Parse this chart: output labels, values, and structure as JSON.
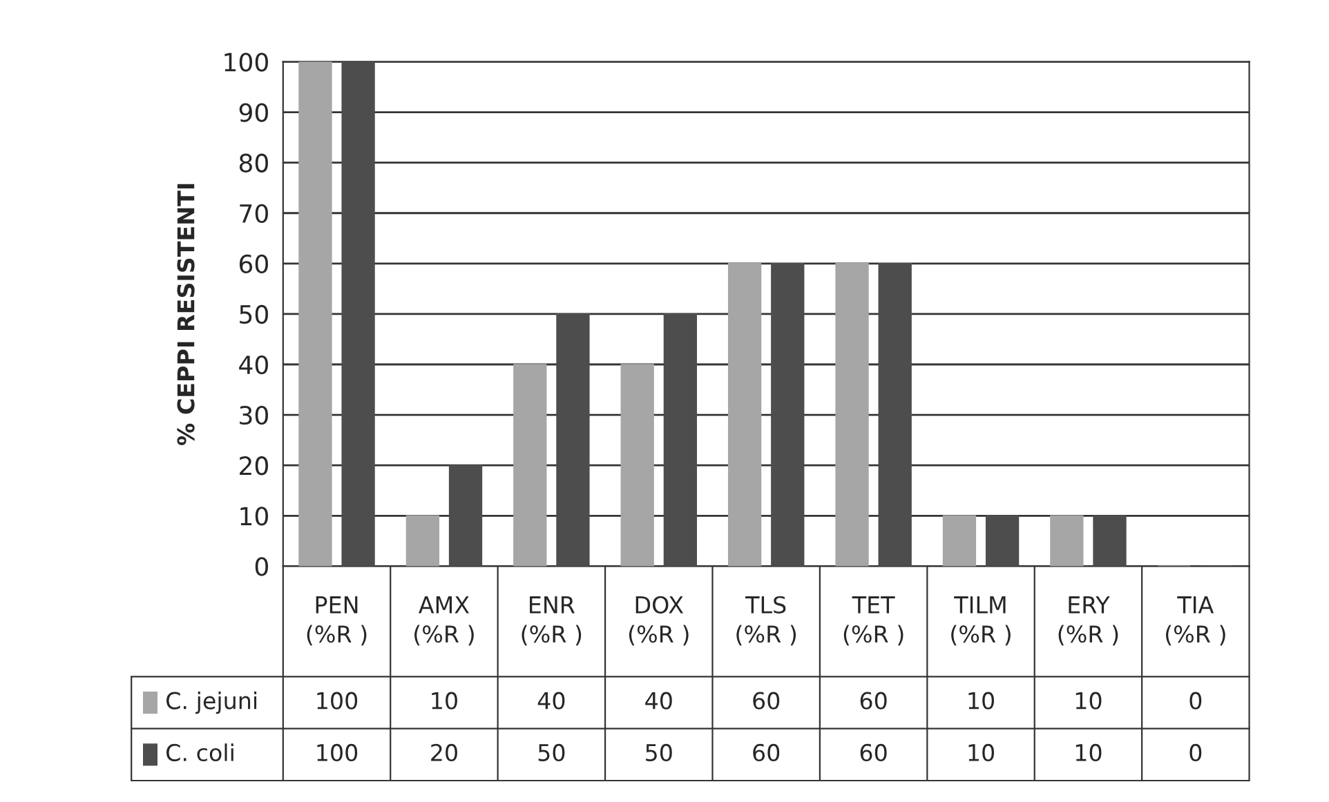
{
  "chart_data": {
    "type": "bar",
    "ylabel": "% CEPPI RESISTENTI",
    "categories": [
      "PEN\n(%R )",
      "AMX\n(%R )",
      "ENR\n(%R )",
      "DOX\n(%R )",
      "TLS\n(%R )",
      "TET\n(%R )",
      "TILM\n(%R )",
      "ERY\n(%R )",
      "TIA\n(%R )"
    ],
    "series": [
      {
        "name": "C. jejuni",
        "color": "#a6a6a6",
        "values": [
          100,
          10,
          40,
          40,
          60,
          60,
          10,
          10,
          0
        ]
      },
      {
        "name": "C. coli",
        "color": "#4d4d4d",
        "values": [
          100,
          20,
          50,
          50,
          60,
          60,
          10,
          10,
          0
        ]
      }
    ],
    "ylim": [
      0,
      100
    ],
    "yticks": [
      0,
      10,
      20,
      30,
      40,
      50,
      60,
      70,
      80,
      90,
      100
    ],
    "grid": "y",
    "data_labels": true,
    "legend": "bottom"
  }
}
